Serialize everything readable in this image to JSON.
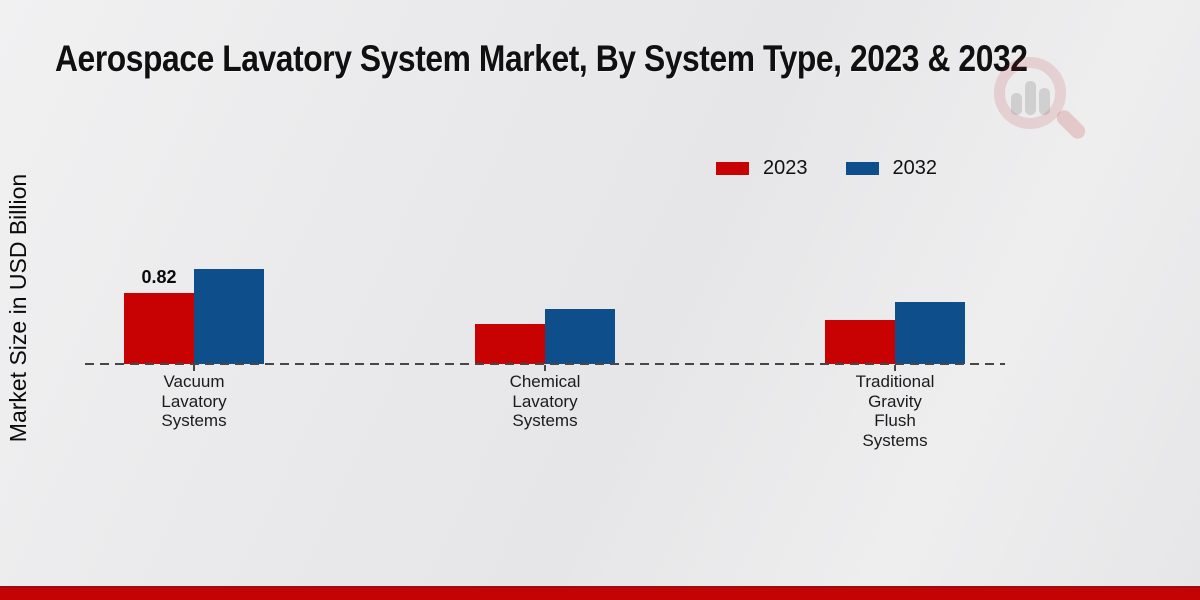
{
  "page": {
    "title": "Aerospace Lavatory System Market, By System Type, 2023 & 2032",
    "y_axis_label": "Market Size in USD Billion"
  },
  "legend": {
    "items": [
      {
        "label": "2023",
        "color": "#c80202"
      },
      {
        "label": "2032",
        "color": "#0d4e8b"
      }
    ]
  },
  "chart_data": {
    "type": "bar",
    "title": "Aerospace Lavatory System Market, By System Type, 2023 & 2032",
    "xlabel": "",
    "ylabel": "Market Size in USD Billion",
    "categories": [
      "Vacuum Lavatory Systems",
      "Chemical Lavatory Systems",
      "Traditional Gravity Flush Systems"
    ],
    "category_label_lines": [
      [
        "Vacuum",
        "Lavatory",
        "Systems"
      ],
      [
        "Chemical",
        "Lavatory",
        "Systems"
      ],
      [
        "Traditional",
        "Gravity",
        "Flush",
        "Systems"
      ]
    ],
    "series": [
      {
        "name": "2023",
        "color": "#c80202",
        "values": [
          0.82,
          0.46,
          0.51
        ]
      },
      {
        "name": "2032",
        "color": "#0d4e8b",
        "values": [
          1.1,
          0.64,
          0.72
        ]
      }
    ],
    "data_labels": [
      {
        "series_index": 0,
        "category_index": 0,
        "text": "0.82"
      }
    ],
    "ylim": [
      0,
      1.25
    ],
    "grid": false,
    "baseline_style": "dashed",
    "legend_position": "top-right",
    "y_ticks_visible": false
  },
  "colors": {
    "bar_2023": "#c80202",
    "bar_2032": "#0d4e8b",
    "footer_stripe": "#c40404",
    "baseline_dash": "#474747",
    "background": "#e9e9eb",
    "text": "#111111"
  },
  "watermark": {
    "name": "magnifier-bar-chart-logo"
  }
}
